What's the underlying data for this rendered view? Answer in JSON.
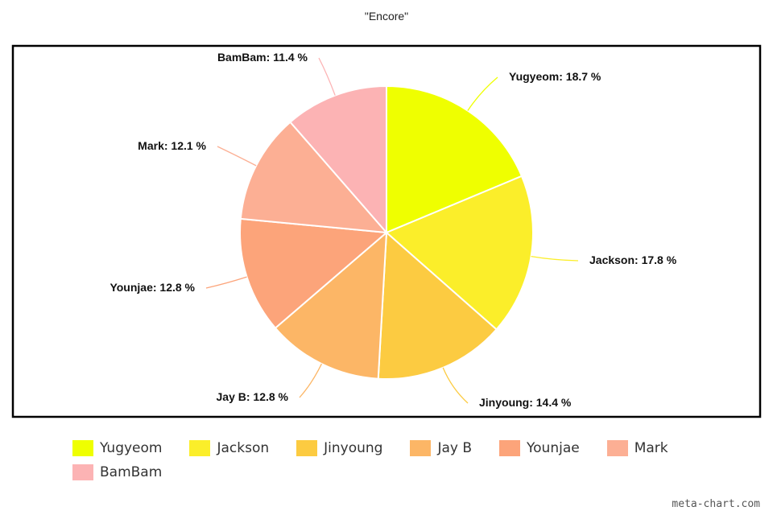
{
  "chart_data": {
    "type": "pie",
    "title": "\"Encore\"",
    "categories": [
      "Yugyeom",
      "Jackson",
      "Jinyoung",
      "Jay B",
      "Younjae",
      "Mark",
      "BamBam"
    ],
    "values": [
      18.7,
      17.8,
      14.4,
      12.8,
      12.8,
      12.1,
      11.4
    ],
    "labels": [
      "Yugyeom: 18.7 %",
      "Jackson: 17.8 %",
      "Jinyoung: 14.4 %",
      "Jay B: 12.8 %",
      "Younjae: 12.8 %",
      "Mark: 12.1 %",
      "BamBam: 11.4 %"
    ],
    "colors": [
      "#efff00",
      "#fbee2a",
      "#fccb41",
      "#fcb666",
      "#fca47a",
      "#fcaf94",
      "#fcb3b4"
    ],
    "legend_position": "bottom"
  },
  "watermark": "meta-chart.com"
}
